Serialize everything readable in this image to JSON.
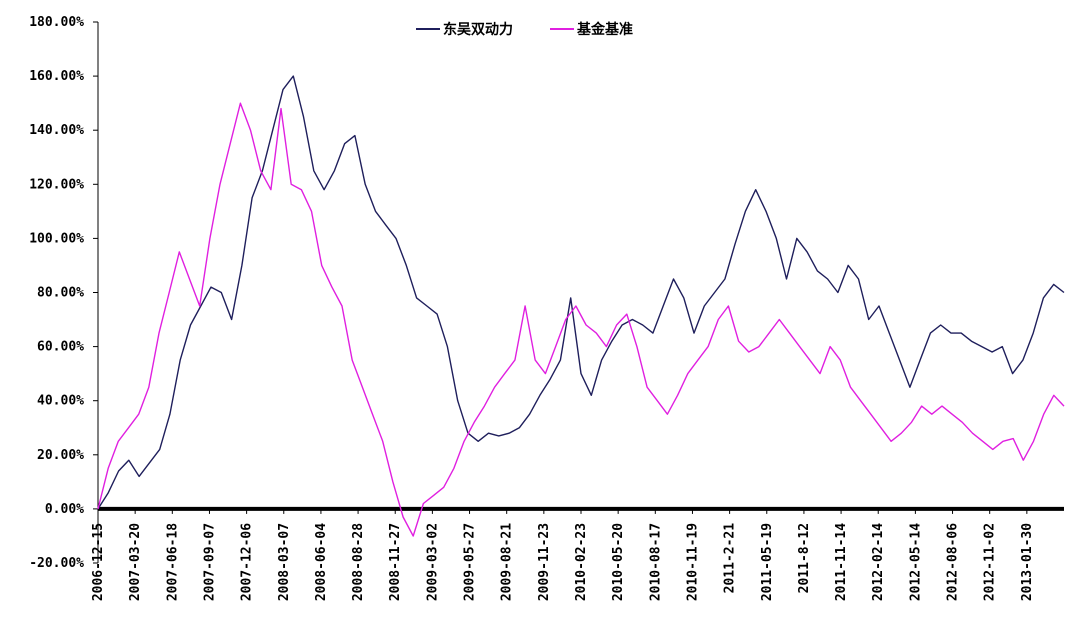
{
  "chart_data": {
    "type": "line",
    "title": "",
    "xlabel": "",
    "ylabel": "",
    "ylim": [
      -20,
      180
    ],
    "y_ticks": [
      -20,
      0,
      20,
      40,
      60,
      80,
      100,
      120,
      140,
      160,
      180
    ],
    "y_tick_labels": [
      "-20.00%",
      "0.00%",
      "20.00%",
      "40.00%",
      "60.00%",
      "80.00%",
      "100.00%",
      "120.00%",
      "140.00%",
      "160.00%",
      "180.00%"
    ],
    "x_tick_labels": [
      "2006-12-15",
      "2007-03-20",
      "2007-06-18",
      "2007-09-07",
      "2007-12-06",
      "2008-03-07",
      "2008-06-04",
      "2008-08-28",
      "2008-11-27",
      "2009-03-02",
      "2009-05-27",
      "2009-08-21",
      "2009-11-23",
      "2010-02-23",
      "2010-05-20",
      "2010-08-17",
      "2010-11-19",
      "2011-2-21",
      "2011-05-19",
      "2011-8-12",
      "2011-11-14",
      "2012-02-14",
      "2012-05-14",
      "2012-08-06",
      "2012-11-02",
      "2013-01-30"
    ],
    "legend_position": "top-center",
    "grid": false,
    "series": [
      {
        "name": "东吴双动力",
        "color": "#1f1f5c",
        "values": [
          0,
          6,
          14,
          18,
          12,
          17,
          22,
          35,
          55,
          68,
          75,
          82,
          80,
          70,
          90,
          115,
          125,
          140,
          155,
          160,
          145,
          125,
          118,
          125,
          135,
          138,
          120,
          110,
          105,
          100,
          90,
          78,
          75,
          72,
          60,
          40,
          28,
          25,
          28,
          27,
          28,
          30,
          35,
          42,
          48,
          55,
          78,
          50,
          42,
          55,
          62,
          68,
          70,
          68,
          65,
          75,
          85,
          78,
          65,
          75,
          80,
          85,
          98,
          110,
          118,
          110,
          100,
          85,
          100,
          95,
          88,
          85,
          80,
          90,
          85,
          70,
          75,
          65,
          55,
          45,
          55,
          65,
          68,
          65,
          65,
          62,
          60,
          58,
          60,
          50,
          55,
          65,
          78,
          83,
          80
        ]
      },
      {
        "name": "基金基准",
        "color": "#e020e0",
        "values": [
          0,
          15,
          25,
          30,
          35,
          45,
          65,
          80,
          95,
          85,
          75,
          100,
          120,
          135,
          150,
          140,
          125,
          118,
          148,
          120,
          118,
          110,
          90,
          82,
          75,
          55,
          45,
          35,
          25,
          10,
          -3,
          -10,
          2,
          5,
          8,
          15,
          25,
          32,
          38,
          45,
          50,
          55,
          75,
          55,
          50,
          60,
          70,
          75,
          68,
          65,
          60,
          68,
          72,
          60,
          45,
          40,
          35,
          42,
          50,
          55,
          60,
          70,
          75,
          62,
          58,
          60,
          65,
          70,
          65,
          60,
          55,
          50,
          60,
          55,
          45,
          40,
          35,
          30,
          25,
          28,
          32,
          38,
          35,
          38,
          35,
          32,
          28,
          25,
          22,
          25,
          26,
          18,
          25,
          35,
          42,
          38
        ]
      }
    ]
  }
}
